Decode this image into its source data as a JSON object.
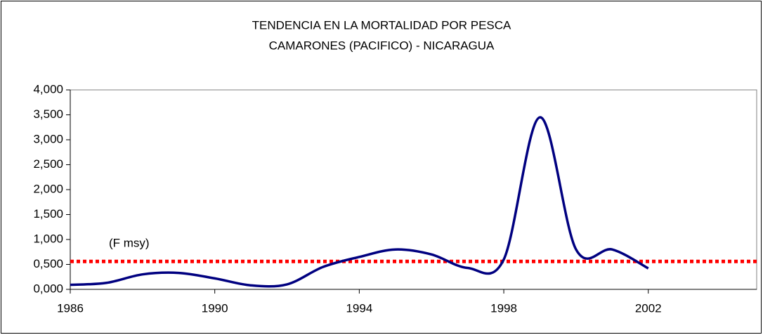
{
  "chart_data": {
    "type": "line",
    "title": "TENDENCIA EN LA MORTALIDAD POR PESCA",
    "subtitle": "CAMARONES (PACIFICO) - NICARAGUA",
    "x": [
      1986,
      1987,
      1988,
      1989,
      1990,
      1991,
      1992,
      1993,
      1994,
      1995,
      1996,
      1997,
      1998,
      1999,
      2000,
      2001,
      2002
    ],
    "values": [
      0.09,
      0.13,
      0.3,
      0.33,
      0.22,
      0.08,
      0.1,
      0.45,
      0.65,
      0.8,
      0.7,
      0.43,
      0.6,
      3.45,
      0.8,
      0.8,
      0.42
    ],
    "color": "#000080",
    "xlim": [
      1986,
      2005
    ],
    "xticks": [
      1986,
      1990,
      1994,
      1998,
      2002
    ],
    "ylim": [
      0,
      4
    ],
    "yticks": [
      {
        "value": 0,
        "label": "0,000"
      },
      {
        "value": 0.5,
        "label": "0,500"
      },
      {
        "value": 1,
        "label": "1,000"
      },
      {
        "value": 1.5,
        "label": "1,500"
      },
      {
        "value": 2,
        "label": "2,000"
      },
      {
        "value": 2.5,
        "label": "2,500"
      },
      {
        "value": 3,
        "label": "3,000"
      },
      {
        "value": 3.5,
        "label": "3,500"
      },
      {
        "value": 4,
        "label": "4,000"
      }
    ],
    "reference_line": {
      "value": 0.56,
      "label": "(F msy)",
      "color": "#ff0000"
    }
  }
}
